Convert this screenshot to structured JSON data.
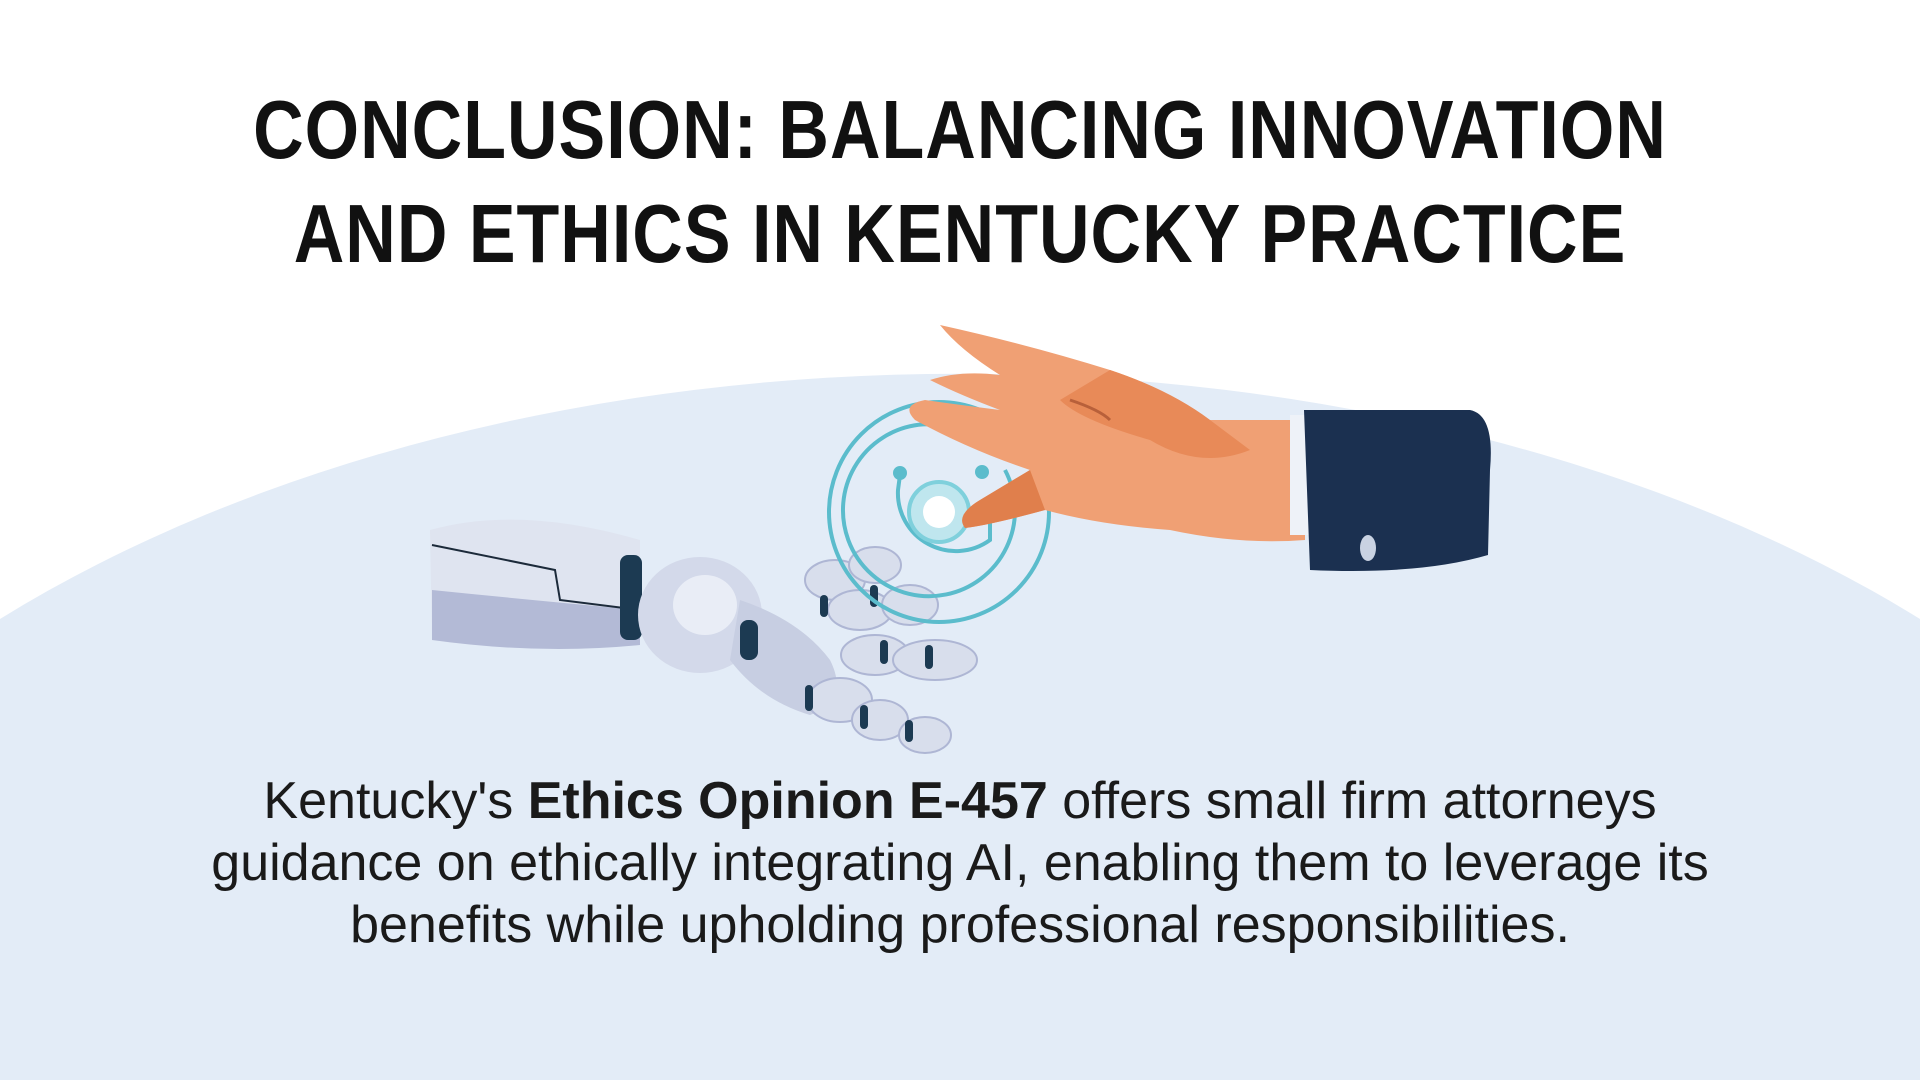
{
  "title": {
    "line1": "CONCLUSION: BALANCING INNOVATION",
    "line2": "AND ETHICS IN KENTUCKY PRACTICE"
  },
  "body": {
    "before": "Kentucky's ",
    "bold": "Ethics Opinion E-457",
    "after": " offers small firm attorneys guidance on ethically integrating AI, enabling them to leverage its benefits while upholding professional responsibilities."
  },
  "illustration": {
    "icon": "human-hand-touching-robot-hand",
    "colors": {
      "background_oval": "#e3ecf7",
      "skin": "#f0a074",
      "sleeve": "#1b3050",
      "robot": "#d8deec",
      "rings": "#5bbccc"
    }
  }
}
